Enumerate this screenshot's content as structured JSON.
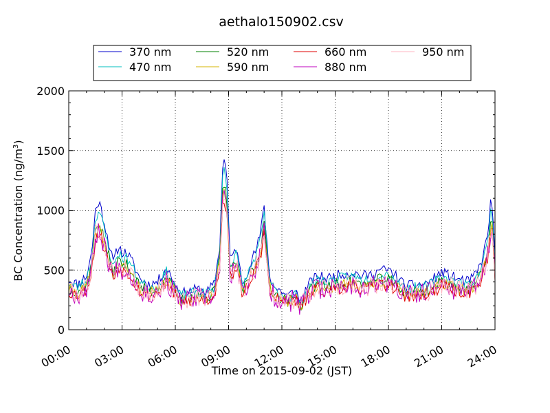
{
  "chart_data": {
    "type": "line",
    "title": "aethalo150902.csv",
    "xlabel": "Time on 2015-09-02 (JST)",
    "ylabel": "BC Concentration (ng/m³)",
    "ylabel_main": "BC Concentration (ng/m",
    "ylabel_sup": "3",
    "ylabel_close": ")",
    "xlim": [
      0,
      24
    ],
    "ylim": [
      0,
      2000
    ],
    "x_ticks": [
      0,
      3,
      6,
      9,
      12,
      15,
      18,
      21,
      24
    ],
    "x_tick_labels": [
      "00:00",
      "03:00",
      "06:00",
      "09:00",
      "12:00",
      "15:00",
      "18:00",
      "21:00",
      "24:00"
    ],
    "y_ticks": [
      0,
      500,
      1000,
      1500,
      2000
    ],
    "y_tick_labels": [
      "0",
      "500",
      "1000",
      "1500",
      "2000"
    ],
    "grid": true,
    "legend_position": "top-center",
    "x_unit": "hours",
    "base": {
      "x": [
        0,
        0.5,
        1,
        1.3,
        1.5,
        1.7,
        2,
        2.3,
        2.5,
        2.8,
        3,
        3.3,
        3.6,
        4,
        4.5,
        5,
        5.5,
        6,
        6.3,
        6.8,
        7.2,
        7.8,
        8.2,
        8.5,
        8.7,
        8.9,
        9.1,
        9.4,
        9.8,
        10.2,
        10.5,
        10.8,
        11,
        11.3,
        11.6,
        12,
        12.3,
        12.8,
        13,
        13.5,
        14,
        14.5,
        15,
        15.5,
        16,
        16.5,
        17,
        17.5,
        18,
        18.5,
        19,
        19.5,
        20,
        20.5,
        21,
        21.5,
        22,
        22.5,
        23,
        23.3,
        23.6,
        23.8,
        24
      ],
      "y": [
        420,
        380,
        450,
        650,
        1000,
        1080,
        900,
        700,
        560,
        700,
        650,
        640,
        560,
        430,
        380,
        400,
        520,
        380,
        300,
        320,
        340,
        320,
        380,
        700,
        1500,
        1300,
        550,
        700,
        380,
        550,
        650,
        800,
        1050,
        450,
        350,
        320,
        280,
        330,
        220,
        380,
        450,
        430,
        450,
        470,
        480,
        450,
        460,
        500,
        500,
        440,
        360,
        380,
        380,
        420,
        480,
        450,
        420,
        400,
        480,
        600,
        800,
        1150,
        600
      ]
    },
    "series": [
      {
        "name": "370 nm",
        "color": "#0000cc",
        "scale": 1.0,
        "noise": 45,
        "seed": 11
      },
      {
        "name": "470 nm",
        "color": "#00bfbf",
        "scale": 0.93,
        "noise": 45,
        "seed": 23
      },
      {
        "name": "520 nm",
        "color": "#008000",
        "scale": 0.84,
        "noise": 50,
        "seed": 37
      },
      {
        "name": "590 nm",
        "color": "#d4b400",
        "scale": 0.8,
        "noise": 50,
        "seed": 41
      },
      {
        "name": "660 nm",
        "color": "#e00000",
        "scale": 0.76,
        "noise": 55,
        "seed": 53
      },
      {
        "name": "880 nm",
        "color": "#bf00bf",
        "scale": 0.78,
        "noise": 90,
        "seed": 67
      },
      {
        "name": "950 nm",
        "color": "#ffb6c1",
        "scale": 0.8,
        "noise": 85,
        "seed": 79
      }
    ]
  }
}
